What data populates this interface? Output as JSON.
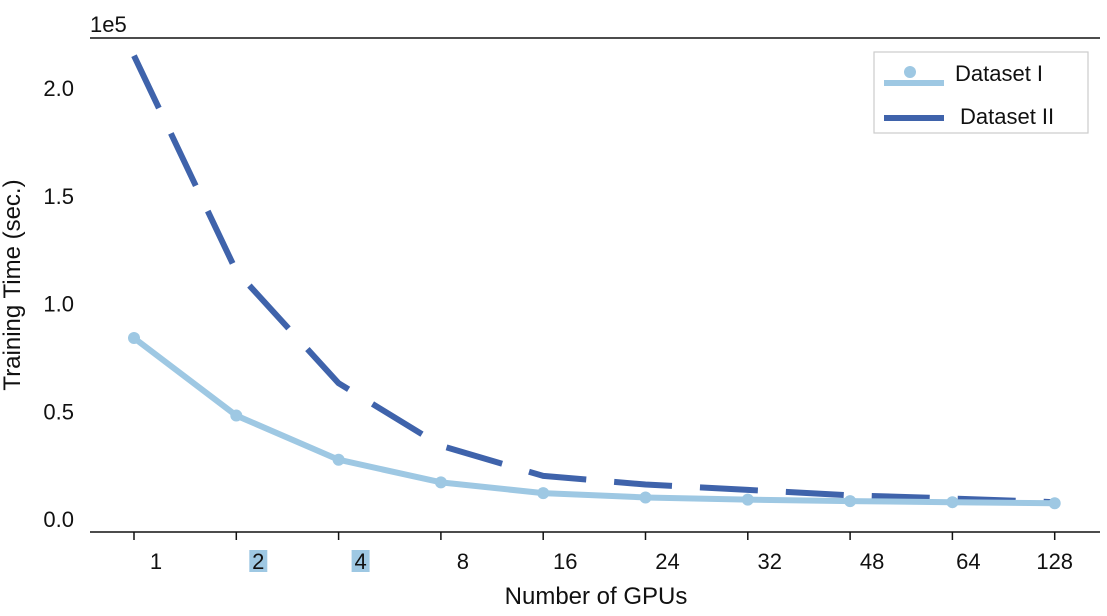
{
  "chart_data": {
    "type": "line",
    "title": "",
    "xlabel": "Number of GPUs",
    "ylabel": "Training Time (sec.)",
    "y_offset_label": "1e5",
    "categories": [
      "1",
      "2",
      "4",
      "8",
      "16",
      "24",
      "32",
      "48",
      "64",
      "128"
    ],
    "highlighted_categories": [
      "2",
      "4"
    ],
    "yticks": [
      "0.0",
      "0.5",
      "1.0",
      "1.5",
      "2.0"
    ],
    "ylim": [
      0,
      220000
    ],
    "grid": false,
    "legend_position": "top-right",
    "series": [
      {
        "name": "Dataset I",
        "style": "solid-with-markers",
        "color": "#9ec8e3",
        "values": [
          84000,
          48000,
          27500,
          17000,
          12000,
          10000,
          9000,
          8300,
          7800,
          7300
        ]
      },
      {
        "name": "Dataset II",
        "style": "dashed",
        "color": "#3f63ab",
        "values": [
          215000,
          115000,
          63000,
          34000,
          20000,
          16000,
          13500,
          11000,
          9500,
          7800
        ]
      }
    ]
  }
}
